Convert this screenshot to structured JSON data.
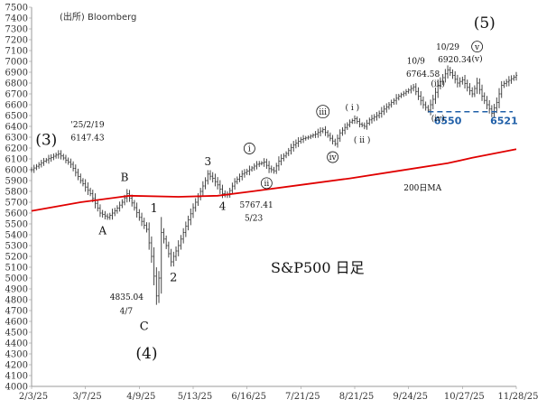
{
  "chart_data": {
    "type": "candlestick",
    "source": "(出所) Bloomberg",
    "title": "S&P500 日足",
    "ylim": [
      4000,
      7500
    ],
    "ytick_step": 100,
    "x_ticks": [
      "2/3/25",
      "3/7/25",
      "4/9/25",
      "5/13/25",
      "6/16/25",
      "7/21/25",
      "8/21/25",
      "9/24/25",
      "10/27/25",
      "11/28/25"
    ],
    "grid": false,
    "series": [
      {
        "kind": "price",
        "color": "#333333",
        "path": [
          [
            0,
            6000
          ],
          [
            5,
            6080
          ],
          [
            11,
            6147
          ],
          [
            16,
            6050
          ],
          [
            20,
            5900
          ],
          [
            24,
            5780
          ],
          [
            28,
            5600
          ],
          [
            31,
            5560
          ],
          [
            34,
            5620
          ],
          [
            37,
            5700
          ],
          [
            39,
            5780
          ],
          [
            42,
            5650
          ],
          [
            44,
            5560
          ],
          [
            47,
            5450
          ],
          [
            49,
            5200
          ],
          [
            51,
            4835
          ],
          [
            52,
            5000
          ],
          [
            53,
            5420
          ],
          [
            55,
            5300
          ],
          [
            57,
            5150
          ],
          [
            60,
            5300
          ],
          [
            63,
            5480
          ],
          [
            66,
            5650
          ],
          [
            69,
            5800
          ],
          [
            71,
            5900
          ],
          [
            72,
            5960
          ],
          [
            74,
            5920
          ],
          [
            76,
            5860
          ],
          [
            78,
            5780
          ],
          [
            80,
            5767
          ],
          [
            83,
            5890
          ],
          [
            86,
            5960
          ],
          [
            89,
            6000
          ],
          [
            92,
            6050
          ],
          [
            95,
            6070
          ],
          [
            97,
            6010
          ],
          [
            99,
            5990
          ],
          [
            101,
            6080
          ],
          [
            104,
            6150
          ],
          [
            107,
            6230
          ],
          [
            110,
            6280
          ],
          [
            113,
            6300
          ],
          [
            116,
            6330
          ],
          [
            119,
            6370
          ],
          [
            122,
            6290
          ],
          [
            124,
            6240
          ],
          [
            126,
            6340
          ],
          [
            128,
            6390
          ],
          [
            130,
            6440
          ],
          [
            132,
            6470
          ],
          [
            134,
            6420
          ],
          [
            136,
            6400
          ],
          [
            138,
            6460
          ],
          [
            141,
            6500
          ],
          [
            144,
            6560
          ],
          [
            147,
            6620
          ],
          [
            150,
            6680
          ],
          [
            153,
            6720
          ],
          [
            156,
            6765
          ],
          [
            158,
            6680
          ],
          [
            160,
            6600
          ],
          [
            162,
            6550
          ],
          [
            164,
            6650
          ],
          [
            166,
            6780
          ],
          [
            168,
            6850
          ],
          [
            170,
            6920
          ],
          [
            172,
            6870
          ],
          [
            174,
            6800
          ],
          [
            176,
            6830
          ],
          [
            178,
            6760
          ],
          [
            180,
            6700
          ],
          [
            182,
            6800
          ],
          [
            184,
            6680
          ],
          [
            186,
            6600
          ],
          [
            188,
            6521
          ],
          [
            190,
            6620
          ],
          [
            192,
            6780
          ],
          [
            194,
            6810
          ],
          [
            196,
            6840
          ],
          [
            198,
            6870
          ]
        ]
      },
      {
        "name": "200日MA",
        "kind": "moving-average",
        "color": "#e00000",
        "path": [
          [
            0,
            5620
          ],
          [
            20,
            5700
          ],
          [
            40,
            5760
          ],
          [
            60,
            5750
          ],
          [
            76,
            5760
          ],
          [
            90,
            5800
          ],
          [
            110,
            5860
          ],
          [
            130,
            5920
          ],
          [
            150,
            5990
          ],
          [
            170,
            6060
          ],
          [
            180,
            6110
          ],
          [
            198,
            6190
          ]
        ]
      }
    ],
    "support_levels": [
      {
        "value": 6550,
        "label": "6550",
        "color": "#1f5fa8"
      },
      {
        "value": 6521,
        "label": "6521",
        "color": "#1f5fa8"
      }
    ],
    "annotations": [
      {
        "text": "(3)",
        "x": 6,
        "y": 6230,
        "size": 17,
        "anchor": "middle"
      },
      {
        "text": "'25/2/19",
        "x": 16,
        "y": 6390,
        "size": 9,
        "anchor": "start"
      },
      {
        "text": "6147.43",
        "x": 16,
        "y": 6270,
        "size": 9,
        "anchor": "start"
      },
      {
        "text": "A",
        "x": 29,
        "y": 5405,
        "size": 12,
        "anchor": "middle"
      },
      {
        "text": "B",
        "x": 38,
        "y": 5895,
        "size": 12,
        "anchor": "middle"
      },
      {
        "text": "1",
        "x": 50,
        "y": 5610,
        "size": 13,
        "anchor": "middle"
      },
      {
        "text": "2",
        "x": 58,
        "y": 4970,
        "size": 13,
        "anchor": "middle"
      },
      {
        "text": "4835.04",
        "x": 32,
        "y": 4800,
        "size": 9,
        "anchor": "start"
      },
      {
        "text": "4/7",
        "x": 36,
        "y": 4670,
        "size": 9,
        "anchor": "start"
      },
      {
        "text": "C",
        "x": 46,
        "y": 4520,
        "size": 13,
        "anchor": "middle"
      },
      {
        "text": "(4)",
        "x": 47,
        "y": 4260,
        "size": 17,
        "anchor": "middle"
      },
      {
        "text": "3",
        "x": 72,
        "y": 6040,
        "size": 12,
        "anchor": "middle"
      },
      {
        "text": "4",
        "x": 78,
        "y": 5630,
        "size": 12,
        "anchor": "middle"
      },
      {
        "text": "5767.41",
        "x": 85,
        "y": 5650,
        "size": 9,
        "anchor": "start"
      },
      {
        "text": "5/23",
        "x": 87,
        "y": 5530,
        "size": 9,
        "anchor": "start"
      },
      {
        "text": "i",
        "x": 89,
        "y": 6170,
        "size": 9,
        "anchor": "middle",
        "circle": true
      },
      {
        "text": "ii",
        "x": 96,
        "y": 5850,
        "size": 9,
        "anchor": "middle",
        "circle": true
      },
      {
        "text": "iii",
        "x": 119,
        "y": 6510,
        "size": 9,
        "anchor": "middle",
        "circle": true
      },
      {
        "text": "iv",
        "x": 123,
        "y": 6090,
        "size": 9,
        "anchor": "middle",
        "circle": true
      },
      {
        "text": "( i )",
        "x": 131,
        "y": 6550,
        "size": 9,
        "anchor": "middle"
      },
      {
        "text": "( ii )",
        "x": 135,
        "y": 6250,
        "size": 9,
        "anchor": "middle"
      },
      {
        "text": "10/9",
        "x": 157,
        "y": 6980,
        "size": 9,
        "anchor": "middle"
      },
      {
        "text": "6764.58",
        "x": 153,
        "y": 6860,
        "size": 9,
        "anchor": "start"
      },
      {
        "text": "(iii)",
        "x": 166,
        "y": 6770,
        "size": 9,
        "anchor": "middle"
      },
      {
        "text": "(iv)",
        "x": 166,
        "y": 6450,
        "size": 9,
        "anchor": "middle"
      },
      {
        "text": "10/29",
        "x": 170,
        "y": 7110,
        "size": 9,
        "anchor": "middle"
      },
      {
        "text": "6920.34",
        "x": 166,
        "y": 6990,
        "size": 9,
        "anchor": "start"
      },
      {
        "text": "v",
        "x": 182,
        "y": 7110,
        "size": 9,
        "anchor": "middle",
        "circle": true
      },
      {
        "text": "(v)",
        "x": 182,
        "y": 7000,
        "size": 9,
        "anchor": "middle"
      },
      {
        "text": "(5)",
        "x": 185,
        "y": 7310,
        "size": 17,
        "anchor": "middle"
      },
      {
        "text": "200日MA",
        "x": 152,
        "y": 5810,
        "size": 9,
        "anchor": "start",
        "color": "#e00000"
      }
    ]
  }
}
